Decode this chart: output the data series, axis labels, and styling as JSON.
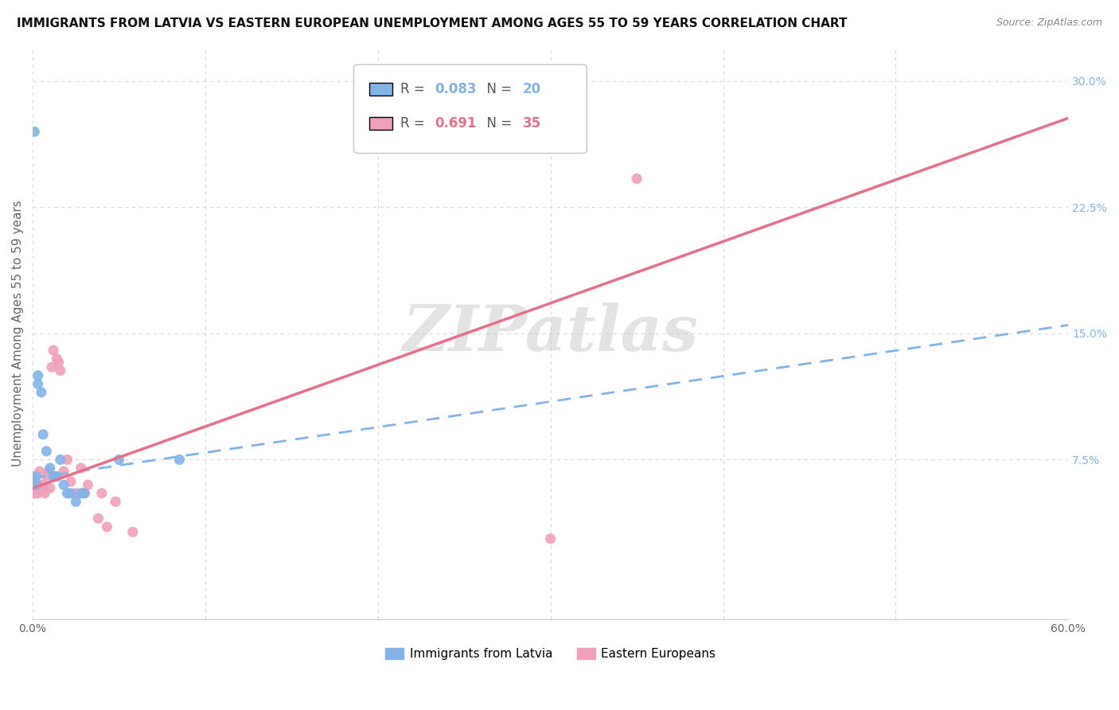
{
  "title": "IMMIGRANTS FROM LATVIA VS EASTERN EUROPEAN UNEMPLOYMENT AMONG AGES 55 TO 59 YEARS CORRELATION CHART",
  "source": "Source: ZipAtlas.com",
  "ylabel": "Unemployment Among Ages 55 to 59 years",
  "xlim": [
    0.0,
    0.6
  ],
  "ylim": [
    -0.02,
    0.32
  ],
  "xticks": [
    0.0,
    0.1,
    0.2,
    0.3,
    0.4,
    0.5,
    0.6
  ],
  "ytick_right": [
    0.075,
    0.15,
    0.225,
    0.3
  ],
  "ytick_right_labels": [
    "7.5%",
    "15.0%",
    "22.5%",
    "30.0%"
  ],
  "legend1_R": "0.083",
  "legend1_N": "20",
  "legend2_R": "0.691",
  "legend2_N": "35",
  "color_blue": "#82b4e8",
  "color_pink": "#f0a0b8",
  "color_blue_line": "#82b4e8",
  "color_pink_line": "#e8708a",
  "watermark": "ZIPatlas",
  "scatter_blue": [
    [
      0.001,
      0.27
    ],
    [
      0.002,
      0.065
    ],
    [
      0.002,
      0.06
    ],
    [
      0.003,
      0.125
    ],
    [
      0.003,
      0.12
    ],
    [
      0.005,
      0.115
    ],
    [
      0.006,
      0.09
    ],
    [
      0.008,
      0.08
    ],
    [
      0.01,
      0.07
    ],
    [
      0.012,
      0.065
    ],
    [
      0.014,
      0.065
    ],
    [
      0.016,
      0.075
    ],
    [
      0.018,
      0.06
    ],
    [
      0.02,
      0.055
    ],
    [
      0.022,
      0.055
    ],
    [
      0.025,
      0.05
    ],
    [
      0.028,
      0.055
    ],
    [
      0.03,
      0.055
    ],
    [
      0.05,
      0.075
    ],
    [
      0.085,
      0.075
    ]
  ],
  "scatter_pink": [
    [
      0.0,
      0.06
    ],
    [
      0.001,
      0.055
    ],
    [
      0.001,
      0.065
    ],
    [
      0.002,
      0.06
    ],
    [
      0.002,
      0.055
    ],
    [
      0.003,
      0.06
    ],
    [
      0.003,
      0.055
    ],
    [
      0.004,
      0.06
    ],
    [
      0.004,
      0.068
    ],
    [
      0.005,
      0.058
    ],
    [
      0.006,
      0.06
    ],
    [
      0.007,
      0.055
    ],
    [
      0.008,
      0.065
    ],
    [
      0.009,
      0.068
    ],
    [
      0.01,
      0.058
    ],
    [
      0.011,
      0.13
    ],
    [
      0.012,
      0.14
    ],
    [
      0.013,
      0.065
    ],
    [
      0.014,
      0.135
    ],
    [
      0.015,
      0.133
    ],
    [
      0.016,
      0.128
    ],
    [
      0.018,
      0.068
    ],
    [
      0.02,
      0.075
    ],
    [
      0.022,
      0.062
    ],
    [
      0.025,
      0.055
    ],
    [
      0.028,
      0.07
    ],
    [
      0.03,
      0.055
    ],
    [
      0.032,
      0.06
    ],
    [
      0.038,
      0.04
    ],
    [
      0.04,
      0.055
    ],
    [
      0.043,
      0.035
    ],
    [
      0.048,
      0.05
    ],
    [
      0.058,
      0.032
    ],
    [
      0.35,
      0.242
    ],
    [
      0.3,
      0.028
    ]
  ],
  "trendline_blue_x0": 0.0,
  "trendline_blue_x1": 0.6,
  "trendline_blue_y0": 0.064,
  "trendline_blue_y1": 0.155,
  "trendline_pink_x0": 0.0,
  "trendline_pink_x1": 0.6,
  "trendline_pink_y0": 0.058,
  "trendline_pink_y1": 0.278,
  "background_color": "#ffffff",
  "grid_color": "#d8d8d8"
}
